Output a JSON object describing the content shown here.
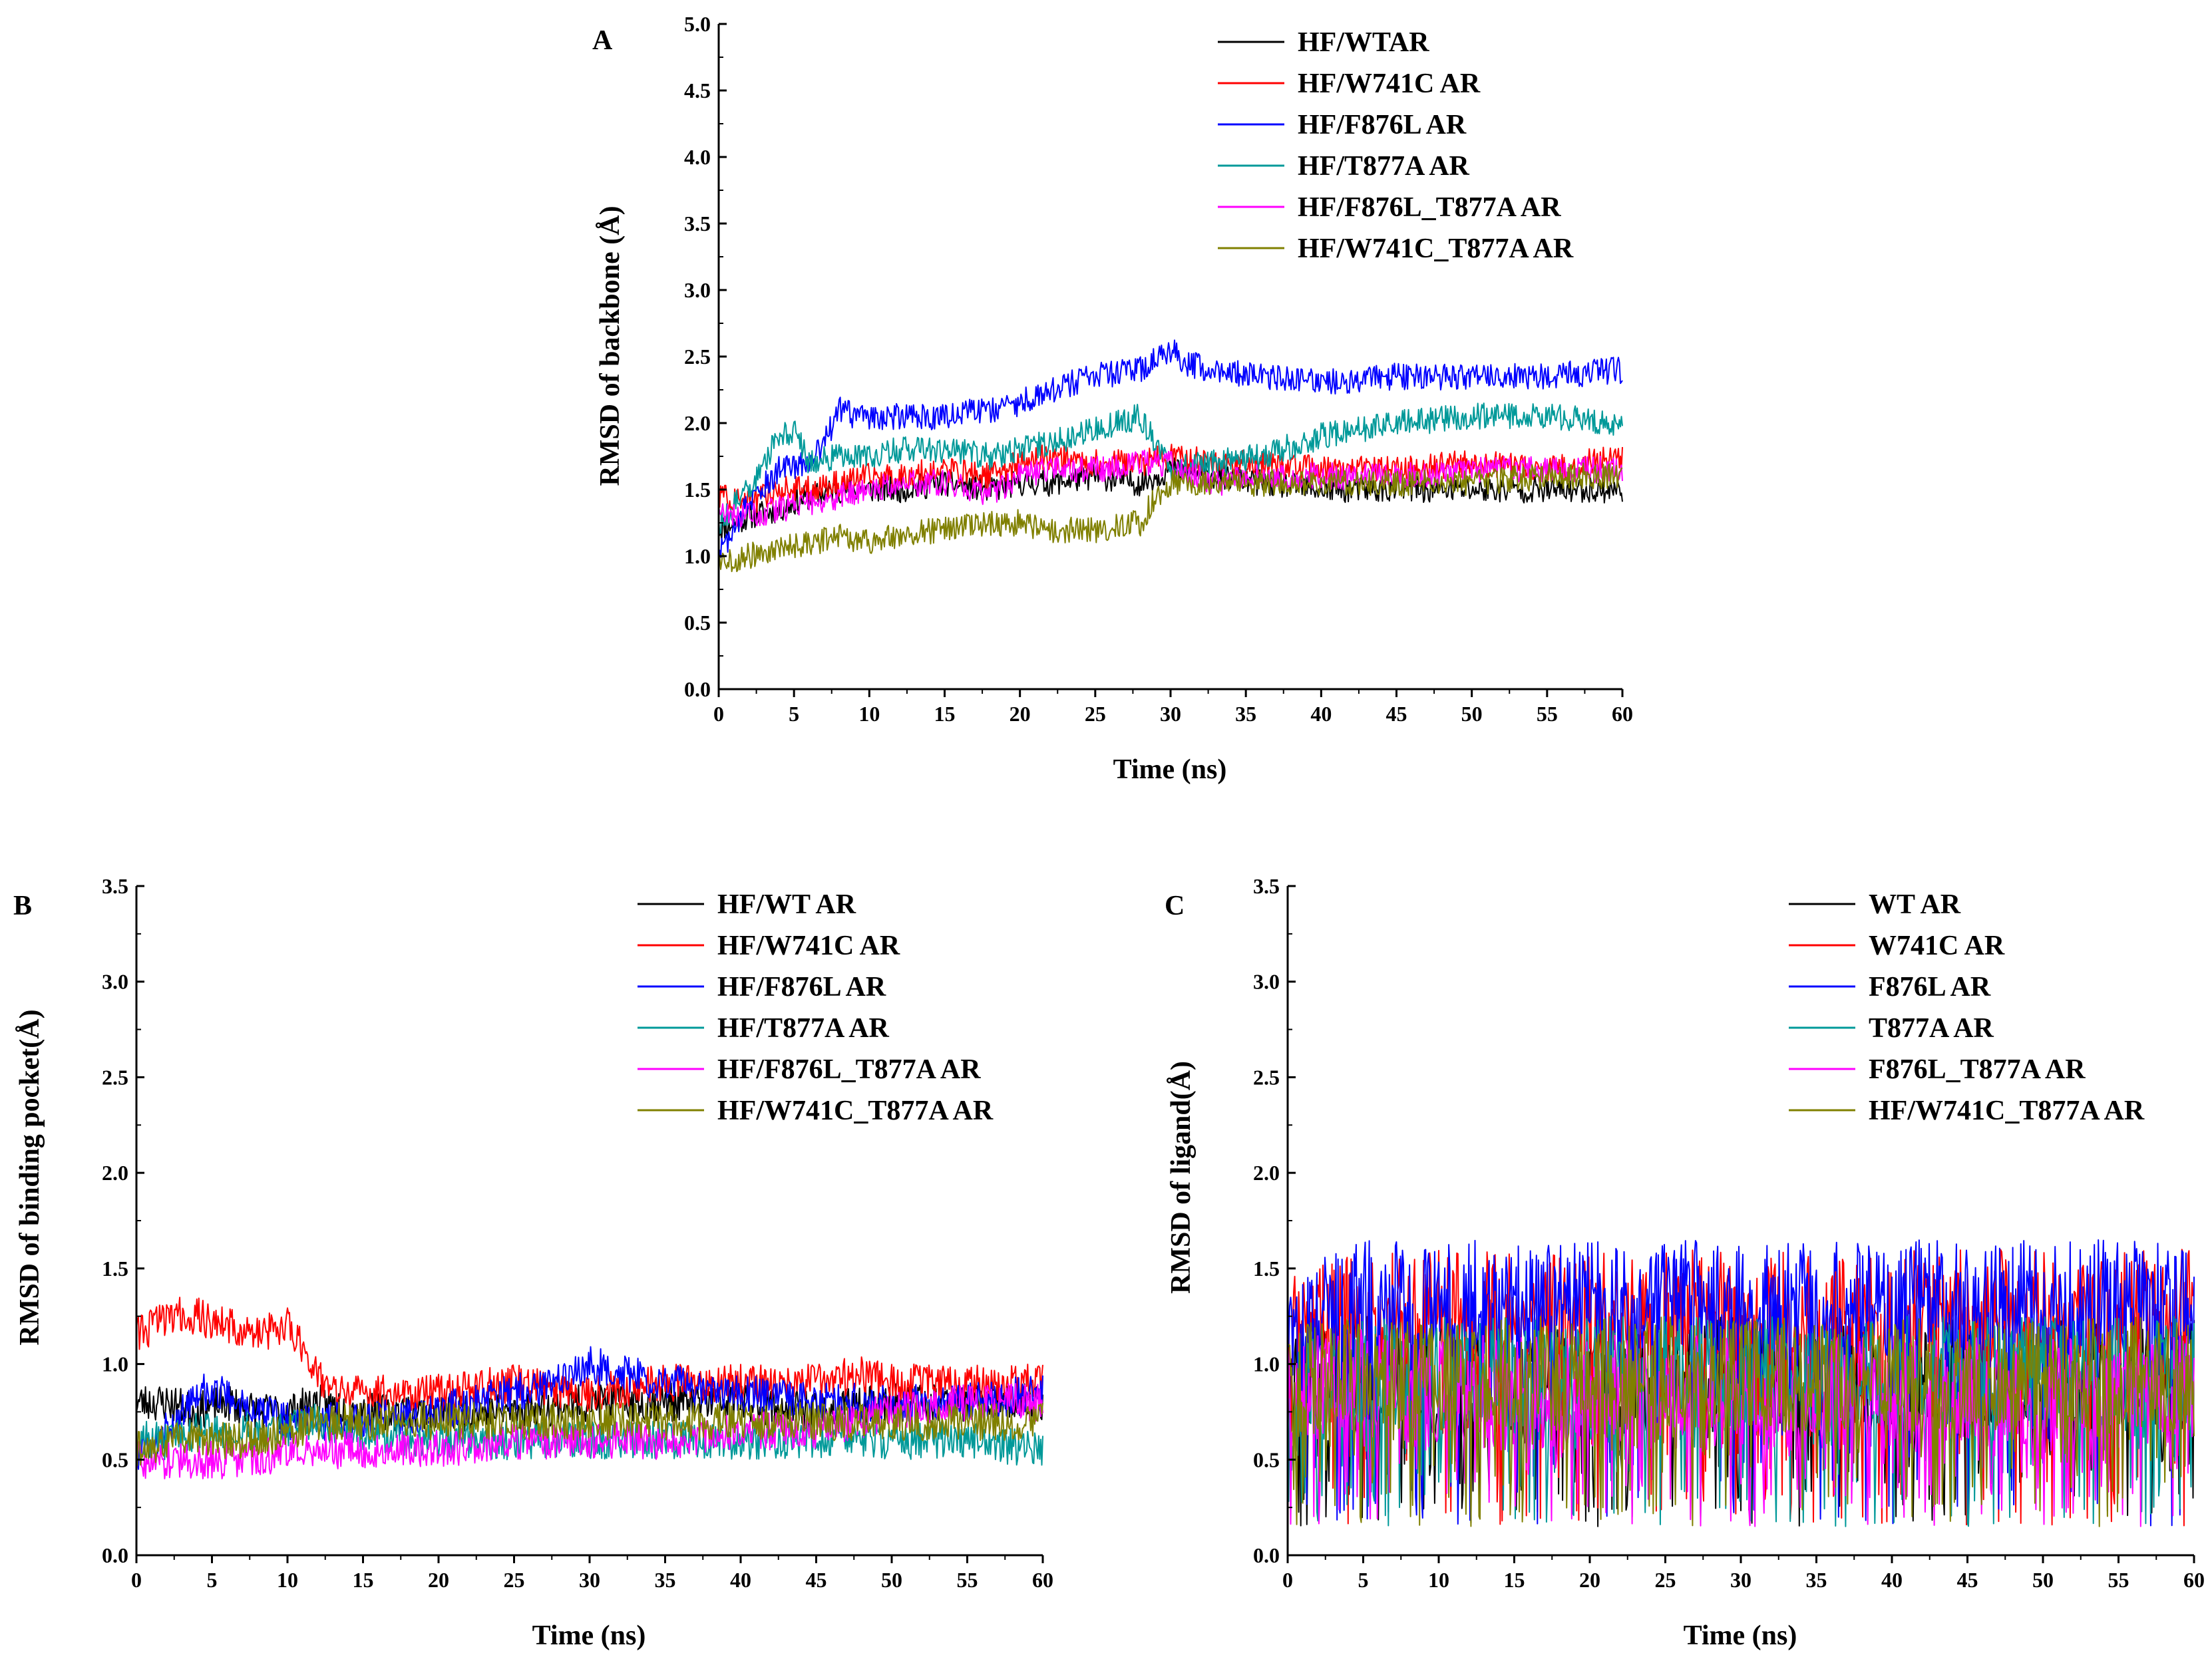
{
  "chart_data": [
    {
      "type": "line",
      "panel": "A",
      "title": "",
      "xlabel": "Time (ns)",
      "ylabel": "RMSD of backbone (Å)",
      "xlim": [
        0,
        60
      ],
      "ylim": [
        0,
        5.0
      ],
      "xticks": [
        "0",
        "5",
        "10",
        "15",
        "20",
        "25",
        "30",
        "35",
        "40",
        "45",
        "50",
        "55",
        "60"
      ],
      "yticks": [
        "0.0",
        "0.5",
        "1.0",
        "1.5",
        "2.0",
        "2.5",
        "3.0",
        "3.5",
        "4.0",
        "4.5",
        "5.0"
      ],
      "grid": false,
      "legend_position": "top-right",
      "series": [
        {
          "name": "HF/WTAR",
          "color": "#000000",
          "x": [
            0,
            2,
            4,
            6,
            8,
            10,
            12,
            15,
            18,
            20,
            22,
            25,
            28,
            30,
            33,
            36,
            40,
            45,
            50,
            55,
            60
          ],
          "values": [
            1.2,
            1.3,
            1.35,
            1.45,
            1.5,
            1.5,
            1.5,
            1.55,
            1.5,
            1.55,
            1.55,
            1.6,
            1.55,
            1.65,
            1.6,
            1.55,
            1.5,
            1.5,
            1.5,
            1.5,
            1.5
          ]
        },
        {
          "name": "HF/W741C AR",
          "color": "#ff0000",
          "x": [
            0,
            2,
            4,
            6,
            8,
            10,
            12,
            15,
            18,
            20,
            22,
            25,
            28,
            30,
            33,
            36,
            40,
            45,
            50,
            55,
            60
          ],
          "values": [
            1.45,
            1.4,
            1.5,
            1.5,
            1.55,
            1.6,
            1.6,
            1.65,
            1.6,
            1.7,
            1.75,
            1.7,
            1.7,
            1.75,
            1.7,
            1.7,
            1.65,
            1.65,
            1.7,
            1.65,
            1.75
          ]
        },
        {
          "name": "HF/F876L AR",
          "color": "#0000ff",
          "x": [
            0,
            2,
            4,
            6,
            7,
            8,
            9,
            10,
            12,
            15,
            18,
            20,
            22,
            25,
            28,
            30,
            31,
            33,
            36,
            40,
            45,
            50,
            55,
            60
          ],
          "values": [
            1.0,
            1.4,
            1.65,
            1.7,
            1.85,
            2.1,
            2.05,
            2.05,
            2.05,
            2.05,
            2.1,
            2.15,
            2.25,
            2.35,
            2.4,
            2.55,
            2.45,
            2.4,
            2.35,
            2.3,
            2.35,
            2.35,
            2.35,
            2.4
          ]
        },
        {
          "name": "HF/T877A AR",
          "color": "#009999",
          "x": [
            0,
            2,
            4,
            5,
            6,
            8,
            10,
            12,
            15,
            18,
            20,
            22,
            25,
            28,
            30,
            33,
            36,
            40,
            45,
            50,
            55,
            60
          ],
          "values": [
            1.25,
            1.5,
            1.9,
            1.95,
            1.7,
            1.75,
            1.75,
            1.8,
            1.8,
            1.75,
            1.8,
            1.85,
            1.95,
            2.05,
            1.65,
            1.7,
            1.75,
            1.9,
            2.0,
            2.05,
            2.05,
            2.0
          ]
        },
        {
          "name": "HF/F876L_T877A AR",
          "color": "#ff00ff",
          "x": [
            0,
            2,
            4,
            6,
            8,
            10,
            12,
            15,
            18,
            20,
            22,
            25,
            28,
            30,
            33,
            36,
            40,
            45,
            50,
            55,
            60
          ],
          "values": [
            1.3,
            1.3,
            1.35,
            1.4,
            1.45,
            1.5,
            1.55,
            1.55,
            1.45,
            1.6,
            1.65,
            1.65,
            1.7,
            1.7,
            1.55,
            1.6,
            1.6,
            1.6,
            1.65,
            1.65,
            1.65
          ]
        },
        {
          "name": "HF/W741C_T877A AR",
          "color": "#808000",
          "x": [
            0,
            2,
            4,
            6,
            8,
            10,
            12,
            15,
            18,
            20,
            22,
            25,
            28,
            29,
            30,
            33,
            36,
            40,
            45,
            50,
            55,
            60
          ],
          "values": [
            0.95,
            1.0,
            1.05,
            1.1,
            1.15,
            1.1,
            1.15,
            1.2,
            1.25,
            1.25,
            1.2,
            1.2,
            1.25,
            1.45,
            1.55,
            1.55,
            1.55,
            1.55,
            1.55,
            1.55,
            1.6,
            1.6
          ]
        }
      ]
    },
    {
      "type": "line",
      "panel": "B",
      "title": "",
      "xlabel": "Time (ns)",
      "ylabel": "RMSD of binding pocket(Å)",
      "xlim": [
        0,
        60
      ],
      "ylim": [
        0,
        3.5
      ],
      "xticks": [
        "0",
        "5",
        "10",
        "15",
        "20",
        "25",
        "30",
        "35",
        "40",
        "45",
        "50",
        "55",
        "60"
      ],
      "yticks": [
        "0.0",
        "0.5",
        "1.0",
        "1.5",
        "2.0",
        "2.5",
        "3.0",
        "3.5"
      ],
      "grid": false,
      "legend_position": "top-right",
      "series": [
        {
          "name": "HF/WT AR",
          "color": "#000000",
          "x": [
            0,
            2,
            4,
            6,
            8,
            10,
            12,
            15,
            20,
            25,
            30,
            35,
            40,
            45,
            50,
            55,
            60
          ],
          "values": [
            0.8,
            0.8,
            0.75,
            0.8,
            0.75,
            0.75,
            0.8,
            0.75,
            0.75,
            0.75,
            0.8,
            0.8,
            0.8,
            0.75,
            0.8,
            0.8,
            0.8
          ]
        },
        {
          "name": "HF/W741C AR",
          "color": "#ff0000",
          "x": [
            0,
            2,
            4,
            6,
            8,
            10,
            11,
            12,
            13,
            15,
            20,
            25,
            30,
            35,
            40,
            45,
            48,
            50,
            55,
            60
          ],
          "values": [
            1.15,
            1.25,
            1.25,
            1.2,
            1.15,
            1.2,
            1.1,
            0.95,
            0.85,
            0.85,
            0.85,
            0.9,
            0.85,
            0.9,
            0.9,
            0.9,
            0.95,
            0.9,
            0.9,
            0.9
          ]
        },
        {
          "name": "HF/F876L AR",
          "color": "#0000ff",
          "x": [
            0,
            2,
            4,
            6,
            8,
            10,
            12,
            15,
            20,
            25,
            28,
            30,
            32,
            35,
            40,
            45,
            50,
            55,
            60
          ],
          "values": [
            0.5,
            0.65,
            0.85,
            0.85,
            0.75,
            0.7,
            0.7,
            0.7,
            0.75,
            0.85,
            0.9,
            1.0,
            0.95,
            0.9,
            0.85,
            0.8,
            0.8,
            0.8,
            0.85
          ]
        },
        {
          "name": "HF/T877A AR",
          "color": "#009999",
          "x": [
            0,
            2,
            4,
            6,
            8,
            10,
            12,
            15,
            20,
            25,
            30,
            35,
            40,
            45,
            50,
            55,
            60
          ],
          "values": [
            0.6,
            0.6,
            0.65,
            0.65,
            0.65,
            0.65,
            0.7,
            0.65,
            0.6,
            0.6,
            0.6,
            0.6,
            0.6,
            0.6,
            0.6,
            0.6,
            0.55
          ]
        },
        {
          "name": "HF/F876L_T877A AR",
          "color": "#ff00ff",
          "x": [
            0,
            2,
            4,
            6,
            8,
            10,
            12,
            15,
            20,
            25,
            30,
            35,
            40,
            45,
            50,
            55,
            60
          ],
          "values": [
            0.5,
            0.5,
            0.5,
            0.5,
            0.5,
            0.55,
            0.55,
            0.55,
            0.55,
            0.6,
            0.6,
            0.6,
            0.65,
            0.65,
            0.75,
            0.8,
            0.8
          ]
        },
        {
          "name": "HF/W741C_T877A AR",
          "color": "#808000",
          "x": [
            0,
            2,
            4,
            6,
            8,
            10,
            12,
            15,
            20,
            25,
            30,
            35,
            40,
            45,
            50,
            55,
            60
          ],
          "values": [
            0.55,
            0.6,
            0.6,
            0.6,
            0.6,
            0.65,
            0.7,
            0.7,
            0.7,
            0.7,
            0.7,
            0.7,
            0.7,
            0.7,
            0.7,
            0.7,
            0.7
          ]
        }
      ]
    },
    {
      "type": "line",
      "panel": "C",
      "title": "",
      "xlabel": "Time (ns)",
      "ylabel": "RMSD of ligand(Å)",
      "xlim": [
        0,
        60
      ],
      "ylim": [
        0,
        3.5
      ],
      "xticks": [
        "0",
        "5",
        "10",
        "15",
        "20",
        "25",
        "30",
        "35",
        "40",
        "45",
        "50",
        "55",
        "60"
      ],
      "yticks": [
        "0.0",
        "0.5",
        "1.0",
        "1.5",
        "2.0",
        "2.5",
        "3.0",
        "3.5"
      ],
      "grid": false,
      "legend_position": "top-right",
      "series": [
        {
          "name": "WT AR",
          "color": "#000000",
          "x": [
            0,
            5,
            10,
            15,
            20,
            25,
            30,
            35,
            40,
            45,
            50,
            55,
            60
          ],
          "values": [
            0.9,
            0.95,
            0.95,
            0.9,
            0.9,
            0.95,
            0.95,
            0.95,
            0.95,
            0.95,
            0.95,
            0.95,
            0.95
          ]
        },
        {
          "name": "W741C AR",
          "color": "#ff0000",
          "x": [
            0,
            5,
            10,
            15,
            20,
            25,
            30,
            35,
            40,
            45,
            50,
            55,
            60
          ],
          "values": [
            1.2,
            1.3,
            1.3,
            1.3,
            1.3,
            1.3,
            1.3,
            1.3,
            1.3,
            1.3,
            1.3,
            1.3,
            1.3
          ]
        },
        {
          "name": "F876L AR",
          "color": "#0000ff",
          "x": [
            0,
            5,
            10,
            15,
            20,
            25,
            30,
            35,
            40,
            45,
            50,
            55,
            60
          ],
          "values": [
            1.2,
            1.35,
            1.35,
            1.35,
            1.35,
            1.35,
            1.35,
            1.35,
            1.35,
            1.35,
            1.35,
            1.35,
            1.35
          ]
        },
        {
          "name": "T877A AR",
          "color": "#009999",
          "x": [
            0,
            5,
            10,
            15,
            20,
            25,
            30,
            35,
            40,
            45,
            50,
            55,
            60
          ],
          "values": [
            0.8,
            0.95,
            0.95,
            0.95,
            0.95,
            0.95,
            0.95,
            0.95,
            0.95,
            0.95,
            0.95,
            0.95,
            0.95
          ]
        },
        {
          "name": "F876L_T877A AR",
          "color": "#ff00ff",
          "x": [
            0,
            5,
            10,
            15,
            20,
            25,
            30,
            35,
            40,
            45,
            50,
            55,
            60
          ],
          "values": [
            0.85,
            0.9,
            0.85,
            0.85,
            0.85,
            0.85,
            0.85,
            0.85,
            0.85,
            0.85,
            0.85,
            0.85,
            0.85
          ]
        },
        {
          "name": "HF/W741C_T877A AR",
          "color": "#808000",
          "x": [
            0,
            5,
            10,
            15,
            20,
            25,
            30,
            35,
            40,
            45,
            50,
            55,
            60
          ],
          "values": [
            0.9,
            0.95,
            0.95,
            0.95,
            0.95,
            0.95,
            0.95,
            0.95,
            0.95,
            0.95,
            0.95,
            0.95,
            0.95
          ]
        }
      ]
    }
  ]
}
